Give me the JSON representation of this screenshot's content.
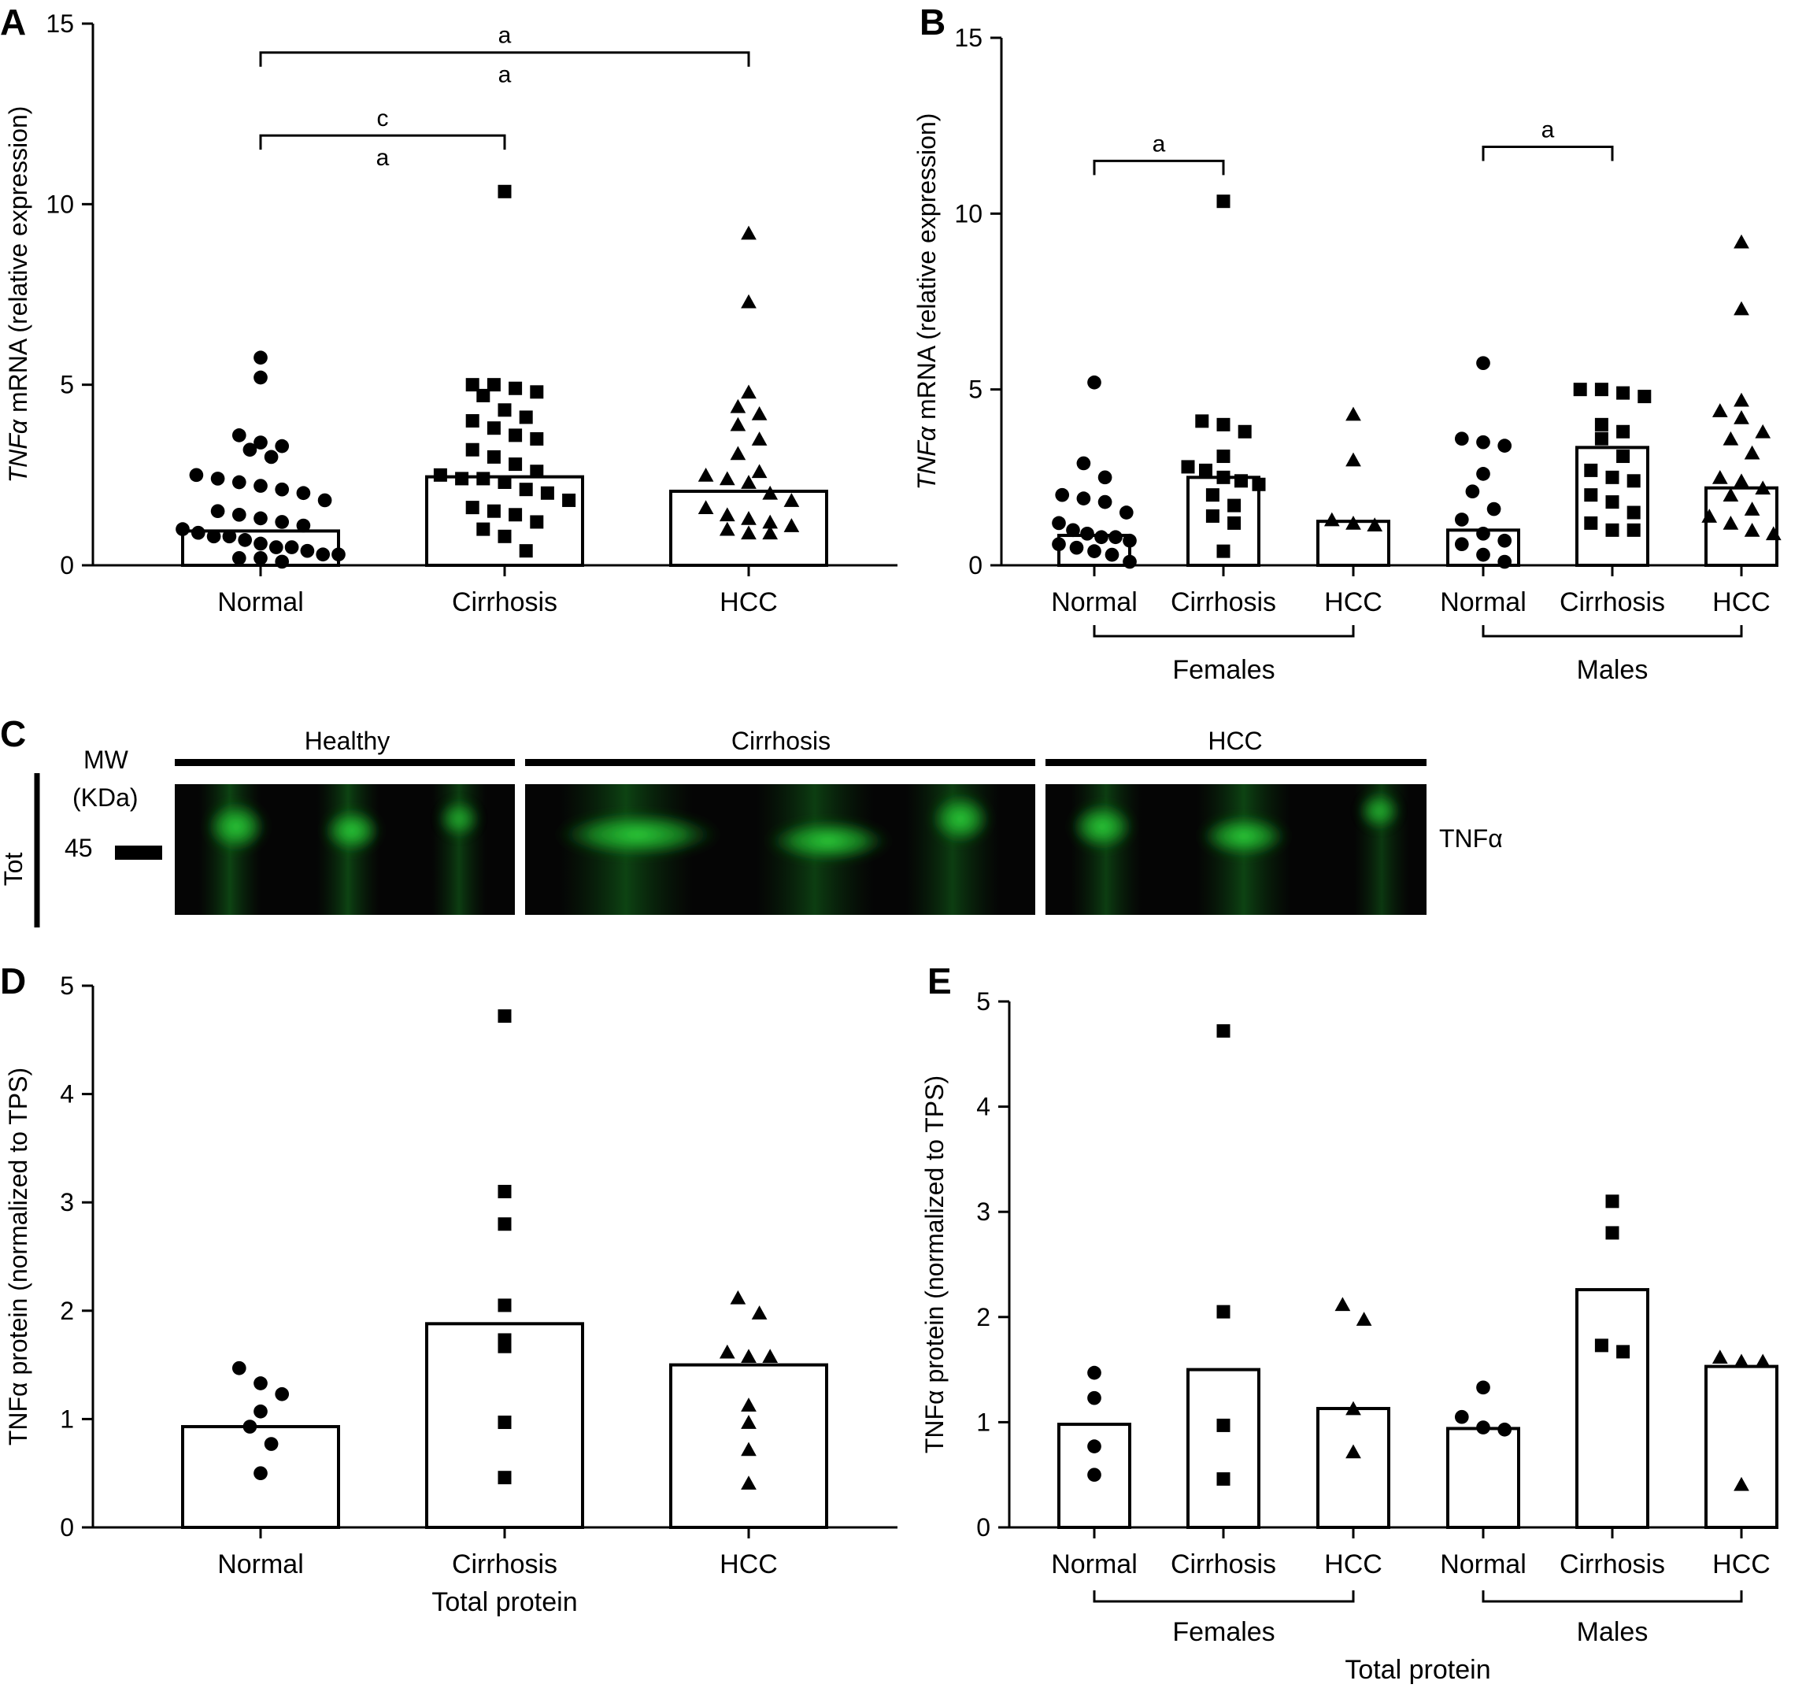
{
  "chart_data": [
    {
      "panel": "A",
      "type": "bar",
      "ylabel_italic": "TNFα",
      "ylabel_rest": " mRNA (relative expression)",
      "ylim": [
        0,
        15
      ],
      "yticks": [
        "0",
        "5",
        "10",
        "15"
      ],
      "categories": [
        "Normal",
        "Cirrhosis",
        "HCC"
      ],
      "bar_values": [
        0.95,
        2.45,
        2.05
      ],
      "markers": [
        "circle",
        "square",
        "triangle"
      ],
      "points": [
        [
          5.75,
          5.2,
          3.6,
          3.4,
          3.3,
          3.2,
          3.0,
          2.5,
          2.4,
          2.3,
          2.2,
          2.1,
          2.0,
          1.8,
          1.5,
          1.4,
          1.3,
          1.2,
          1.1,
          1.0,
          0.9,
          0.8,
          0.8,
          0.7,
          0.6,
          0.5,
          0.5,
          0.4,
          0.3,
          0.3,
          0.2,
          0.2,
          0.1
        ],
        [
          10.35,
          5.0,
          5.0,
          4.9,
          4.8,
          4.7,
          4.3,
          4.1,
          4.0,
          3.8,
          3.6,
          3.5,
          3.2,
          3.0,
          2.8,
          2.6,
          2.5,
          2.4,
          2.4,
          2.3,
          2.1,
          2.0,
          1.8,
          1.6,
          1.5,
          1.4,
          1.2,
          1.0,
          0.8,
          0.4
        ],
        [
          9.2,
          7.3,
          4.8,
          4.4,
          4.2,
          3.9,
          3.5,
          3.1,
          2.6,
          2.5,
          2.4,
          2.3,
          2.0,
          1.8,
          1.6,
          1.4,
          1.3,
          1.2,
          1.1,
          1.0,
          0.9,
          0.9
        ]
      ],
      "comparisons": [
        {
          "from": 0,
          "to": 2,
          "level": 14.2,
          "labels": [
            "a",
            "a"
          ]
        },
        {
          "from": 0,
          "to": 1,
          "level": 11.9,
          "labels": [
            "c",
            "a"
          ]
        }
      ]
    },
    {
      "panel": "B",
      "type": "bar",
      "ylabel_italic": "TNFα",
      "ylabel_rest": " mRNA (relative expression)",
      "ylim": [
        0,
        15
      ],
      "yticks": [
        "0",
        "5",
        "10",
        "15"
      ],
      "categories": [
        "Normal",
        "Cirrhosis",
        "HCC",
        "Normal",
        "Cirrhosis",
        "HCC"
      ],
      "groups": [
        {
          "label": "Females",
          "from": 0,
          "to": 2
        },
        {
          "label": "Males",
          "from": 3,
          "to": 5
        }
      ],
      "bar_values": [
        0.85,
        2.5,
        1.25,
        1.0,
        3.35,
        2.2
      ],
      "markers": [
        "circle",
        "square",
        "triangle",
        "circle",
        "square",
        "triangle"
      ],
      "points": [
        [
          5.2,
          2.9,
          2.5,
          2.0,
          1.9,
          1.8,
          1.5,
          1.2,
          1.0,
          0.9,
          0.8,
          0.8,
          0.7,
          0.6,
          0.5,
          0.4,
          0.3,
          0.1
        ],
        [
          10.35,
          4.1,
          4.0,
          3.8,
          3.1,
          2.8,
          2.7,
          2.5,
          2.4,
          2.3,
          2.0,
          1.7,
          1.4,
          1.2,
          0.4
        ],
        [
          4.3,
          3.0,
          1.3,
          1.2,
          1.15
        ],
        [
          5.75,
          3.6,
          3.5,
          3.4,
          2.6,
          2.1,
          1.6,
          1.3,
          0.9,
          0.7,
          0.6,
          0.3,
          0.1
        ],
        [
          5.0,
          5.0,
          4.9,
          4.8,
          4.0,
          3.8,
          3.6,
          3.1,
          2.7,
          2.5,
          2.4,
          2.0,
          1.8,
          1.5,
          1.2,
          1.0,
          1.0
        ],
        [
          9.2,
          7.3,
          4.7,
          4.4,
          4.2,
          3.8,
          3.6,
          3.2,
          2.5,
          2.4,
          2.2,
          2.0,
          1.6,
          1.4,
          1.2,
          1.0,
          0.9
        ]
      ],
      "comparisons": [
        {
          "from": 0,
          "to": 1,
          "level": 11.5,
          "labels": [
            "a"
          ]
        },
        {
          "from": 3,
          "to": 4,
          "level": 11.9,
          "labels": [
            "a"
          ]
        }
      ]
    },
    {
      "panel": "D",
      "type": "bar",
      "ylabel": "TNFα protein (normalized to TPS)",
      "xlabel": "Total protein",
      "ylim": [
        0,
        5
      ],
      "yticks": [
        "0",
        "1",
        "2",
        "3",
        "4",
        "5"
      ],
      "categories": [
        "Normal",
        "Cirrhosis",
        "HCC"
      ],
      "bar_values": [
        0.93,
        1.88,
        1.5
      ],
      "markers": [
        "circle",
        "square",
        "triangle"
      ],
      "points": [
        [
          1.47,
          1.33,
          1.23,
          1.07,
          0.93,
          0.77,
          0.5
        ],
        [
          4.72,
          3.1,
          2.8,
          2.05,
          1.73,
          1.67,
          0.97,
          0.46
        ],
        [
          2.12,
          1.98,
          1.62,
          1.58,
          1.58,
          1.13,
          0.97,
          0.72,
          0.41
        ]
      ]
    },
    {
      "panel": "E",
      "type": "bar",
      "ylabel": "TNFα protein (normalized to TPS)",
      "xlabel": "Total protein",
      "ylim": [
        0,
        5
      ],
      "yticks": [
        "0",
        "1",
        "2",
        "3",
        "4",
        "5"
      ],
      "categories": [
        "Normal",
        "Cirrhosis",
        "HCC",
        "Normal",
        "Cirrhosis",
        "HCC"
      ],
      "groups": [
        {
          "label": "Females",
          "from": 0,
          "to": 2
        },
        {
          "label": "Males",
          "from": 3,
          "to": 5
        }
      ],
      "bar_values": [
        0.98,
        1.5,
        1.13,
        0.94,
        2.26,
        1.53
      ],
      "markers": [
        "circle",
        "square",
        "triangle",
        "circle",
        "square",
        "triangle"
      ],
      "points": [
        [
          1.47,
          1.23,
          0.77,
          0.5
        ],
        [
          4.72,
          2.05,
          0.97,
          0.46
        ],
        [
          2.12,
          1.98,
          1.13,
          0.72
        ],
        [
          1.33,
          1.05,
          0.95,
          0.93
        ],
        [
          3.1,
          2.8,
          1.73,
          1.67
        ],
        [
          1.62,
          1.58,
          1.58,
          0.41
        ]
      ]
    }
  ],
  "blot": {
    "panel": "C",
    "mw_label": "MW",
    "kda_label": "(KDa)",
    "marker_value": "45",
    "side_label": "Tot",
    "band_label": "TNFα",
    "groups": [
      "Healthy",
      "Cirrhosis",
      "HCC"
    ],
    "band_color": "#22c433"
  }
}
